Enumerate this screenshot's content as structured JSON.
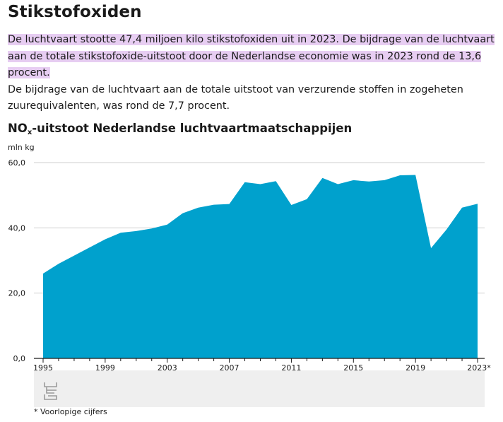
{
  "page": {
    "heading": "Stikstofoxiden",
    "intro_highlighted": "De luchtvaart stootte 47,4 miljoen kilo stikstofoxiden uit in 2023. De bijdrage van de luchtvaart aan de totale stikstofoxide-uitstoot door de Nederlandse economie was in 2023 rond de 13,6 procent.",
    "intro_plain": "De bijdrage van de luchtvaart aan de totale uitstoot van verzurende stoffen in zogeheten zuurequivalenten, was rond de 7,7 procent."
  },
  "chart_data": {
    "type": "area",
    "title_main": "NO",
    "title_sub": "x",
    "title_rest": "-uitstoot Nederlandse luchtvaartmaatschappijen",
    "ylabel": "mln kg",
    "x": [
      1995,
      1996,
      1997,
      1998,
      1999,
      2000,
      2001,
      2002,
      2003,
      2004,
      2005,
      2006,
      2007,
      2008,
      2009,
      2010,
      2011,
      2012,
      2013,
      2014,
      2015,
      2016,
      2017,
      2018,
      2019,
      2020,
      2021,
      2022,
      2023
    ],
    "values": [
      26.0,
      29.0,
      31.5,
      34.0,
      36.5,
      38.5,
      39.0,
      39.8,
      41.0,
      44.5,
      46.2,
      47.1,
      47.3,
      54.0,
      53.4,
      54.3,
      47.0,
      48.8,
      55.3,
      53.4,
      54.6,
      54.2,
      54.6,
      56.1,
      56.2,
      33.8,
      39.5,
      46.2,
      47.4
    ],
    "ylim": [
      0,
      60
    ],
    "yticks": [
      "0,0",
      "20,0",
      "40,0",
      "60,0"
    ],
    "ytick_values": [
      0,
      20,
      40,
      60
    ],
    "xtick_labels": [
      "1995",
      "1999",
      "2003",
      "2007",
      "2011",
      "2015",
      "2019",
      "2023*"
    ],
    "xtick_values": [
      1995,
      1999,
      2003,
      2007,
      2011,
      2015,
      2019,
      2023
    ],
    "color": "#00a1cd",
    "grid": true,
    "footnote": "* Voorlopige cijfers"
  }
}
